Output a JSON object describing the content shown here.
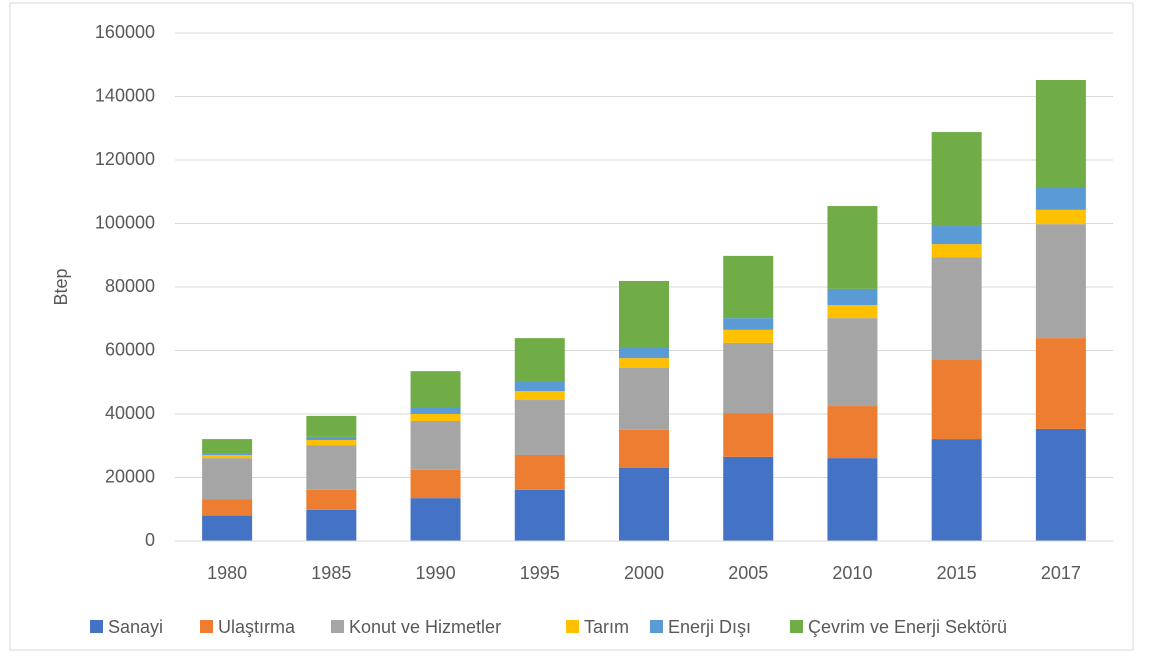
{
  "chart_data": {
    "type": "stacked_bar",
    "y_label": "Btep",
    "categories": [
      "1980",
      "1985",
      "1990",
      "1995",
      "2000",
      "2005",
      "2010",
      "2015",
      "2017"
    ],
    "series": [
      {
        "name": "Sanayi",
        "color": "#4472c4",
        "values": [
          8000,
          9800,
          13500,
          16100,
          23000,
          26500,
          26100,
          32100,
          35300
        ]
      },
      {
        "name": "Ulaştırma",
        "color": "#ed7d31",
        "values": [
          5200,
          6300,
          8900,
          11000,
          12000,
          13800,
          16400,
          24900,
          28600
        ]
      },
      {
        "name": "Konut ve Hizmetler",
        "color": "#a5a5a5",
        "values": [
          12900,
          14100,
          15400,
          17300,
          19500,
          22100,
          27700,
          32400,
          35900
        ]
      },
      {
        "name": "Tarım",
        "color": "#ffc000",
        "values": [
          1000,
          1600,
          2200,
          2800,
          3100,
          4100,
          4100,
          4100,
          4500
        ]
      },
      {
        "name": "Enerji Dışı",
        "color": "#5b9bd5",
        "values": [
          600,
          1000,
          2200,
          3200,
          3500,
          3700,
          5100,
          5700,
          7200
        ]
      },
      {
        "name": "Çevrim ve Enerji Sektörü",
        "color": "#70ad47",
        "values": [
          4400,
          6600,
          11300,
          13500,
          20800,
          19600,
          26100,
          29600,
          33700
        ]
      }
    ],
    "ylim": [
      0,
      160000
    ],
    "yticks": [
      0,
      20000,
      40000,
      60000,
      80000,
      100000,
      120000,
      140000,
      160000
    ],
    "grid": true,
    "legend": "bottom"
  }
}
